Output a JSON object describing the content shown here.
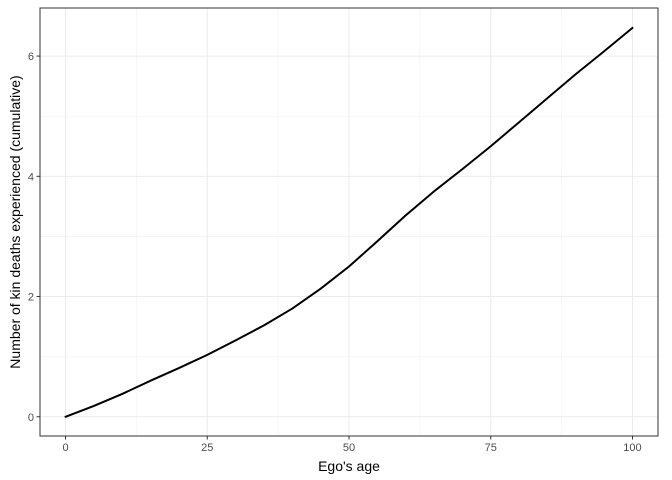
{
  "chart_data": {
    "type": "line",
    "title": "",
    "xlabel": "Ego's age",
    "ylabel": "Number of kin deaths experienced (cumulative)",
    "xlim": [
      -4.5,
      104.5
    ],
    "ylim": [
      -0.32,
      6.8
    ],
    "x_ticks": [
      0,
      25,
      50,
      75,
      100
    ],
    "y_ticks": [
      0,
      2,
      4,
      6
    ],
    "x_tick_labels": [
      "0",
      "25",
      "50",
      "75",
      "100"
    ],
    "y_tick_labels": [
      "0",
      "2",
      "4",
      "6"
    ],
    "grid": true,
    "legend": "none",
    "series": [
      {
        "color": "#000000",
        "x": [
          0,
          5,
          10,
          15,
          20,
          25,
          30,
          35,
          40,
          45,
          50,
          55,
          60,
          65,
          70,
          75,
          80,
          85,
          90,
          95,
          100
        ],
        "y": [
          0,
          0.18,
          0.38,
          0.6,
          0.81,
          1.03,
          1.27,
          1.52,
          1.8,
          2.13,
          2.5,
          2.92,
          3.35,
          3.75,
          4.12,
          4.5,
          4.9,
          5.3,
          5.7,
          6.08,
          6.47
        ]
      }
    ]
  }
}
